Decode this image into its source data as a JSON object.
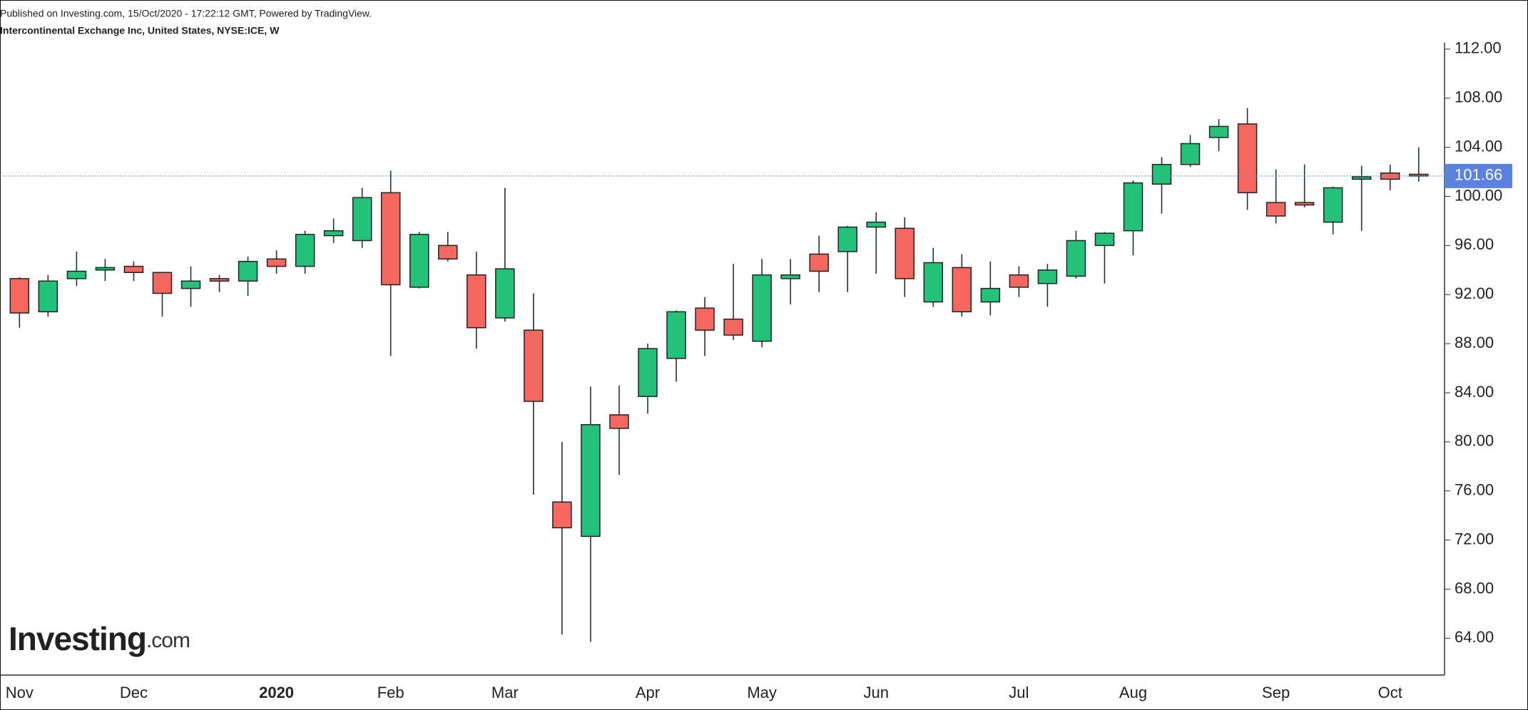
{
  "chart_data": {
    "type": "candlestick",
    "subtitle": "Published on Investing.com, 15/Oct/2020 - 17:22:12 GMT, Powered by TradingView.",
    "title": "Intercontinental Exchange Inc, United States, NYSE:ICE, W",
    "logo": {
      "name": "Investing",
      "suffix": ".com"
    },
    "categories": [
      "Nov",
      null,
      null,
      null,
      "Dec",
      null,
      null,
      null,
      null,
      "2020",
      null,
      null,
      null,
      "Feb",
      null,
      null,
      null,
      "Mar",
      null,
      null,
      null,
      null,
      "Apr",
      null,
      null,
      null,
      "May",
      null,
      null,
      null,
      "Jun",
      null,
      null,
      null,
      null,
      "Jul",
      null,
      null,
      null,
      "Aug",
      null,
      null,
      null,
      null,
      "Sep",
      null,
      null,
      null,
      "Oct",
      null
    ],
    "open": [
      93.3,
      90.6,
      93.3,
      94.0,
      94.3,
      93.8,
      92.5,
      93.3,
      93.1,
      94.9,
      94.3,
      96.8,
      96.4,
      100.3,
      92.6,
      96.0,
      93.6,
      90.1,
      89.1,
      75.1,
      72.3,
      82.2,
      83.7,
      86.8,
      90.9,
      90.0,
      88.2,
      93.3,
      95.3,
      95.5,
      97.5,
      97.4,
      91.4,
      94.2,
      91.4,
      93.6,
      92.9,
      93.5,
      96.0,
      97.2,
      101.0,
      102.6,
      104.8,
      105.9,
      99.5,
      99.5,
      97.9,
      101.4,
      101.9,
      101.8
    ],
    "high": [
      93.4,
      93.6,
      95.5,
      94.9,
      94.7,
      93.8,
      94.3,
      93.6,
      95.1,
      95.6,
      97.2,
      98.2,
      100.7,
      102.1,
      97.1,
      97.1,
      95.5,
      100.7,
      92.1,
      80.0,
      84.5,
      84.6,
      88.0,
      90.7,
      91.8,
      94.5,
      94.9,
      94.9,
      96.8,
      97.6,
      98.7,
      98.3,
      95.8,
      95.3,
      94.7,
      94.3,
      94.5,
      97.2,
      97.1,
      101.3,
      103.2,
      105.0,
      106.3,
      107.2,
      102.2,
      102.6,
      100.8,
      102.5,
      102.6,
      104.0
    ],
    "low": [
      89.3,
      90.2,
      92.7,
      93.1,
      93.1,
      90.2,
      91.0,
      92.2,
      91.9,
      93.7,
      93.7,
      96.2,
      95.8,
      87.0,
      92.5,
      94.7,
      87.6,
      89.8,
      75.7,
      64.3,
      63.7,
      77.3,
      82.3,
      84.9,
      87.0,
      88.3,
      87.7,
      91.2,
      92.2,
      92.2,
      93.7,
      91.8,
      91.0,
      90.2,
      90.3,
      91.8,
      91.0,
      93.3,
      92.9,
      95.2,
      98.6,
      102.4,
      103.7,
      98.9,
      97.8,
      99.1,
      96.9,
      97.2,
      100.5,
      101.2
    ],
    "close": [
      90.5,
      93.1,
      93.9,
      94.2,
      93.8,
      92.1,
      93.1,
      93.1,
      94.7,
      94.3,
      96.9,
      97.2,
      99.9,
      92.8,
      96.9,
      94.9,
      89.3,
      94.1,
      83.3,
      73.0,
      81.4,
      81.1,
      87.6,
      90.6,
      89.1,
      88.7,
      93.6,
      93.6,
      93.9,
      97.5,
      97.9,
      93.3,
      94.6,
      90.6,
      92.5,
      92.6,
      94.0,
      96.4,
      97.0,
      101.1,
      102.6,
      104.3,
      105.7,
      100.3,
      98.4,
      99.3,
      100.7,
      101.6,
      101.4,
      101.66
    ],
    "last_value": 101.66,
    "up_color": "#22c279",
    "down_color": "#f5675f",
    "last_color": "#5c82e0",
    "ylim": [
      61,
      116
    ],
    "yticks": [
      {
        "value": 64,
        "label": "64.00"
      },
      {
        "value": 68,
        "label": "68.00"
      },
      {
        "value": 72,
        "label": "72.00"
      },
      {
        "value": 76,
        "label": "76.00"
      },
      {
        "value": 80,
        "label": "80.00"
      },
      {
        "value": 84,
        "label": "84.00"
      },
      {
        "value": 88,
        "label": "88.00"
      },
      {
        "value": 92,
        "label": "92.00"
      },
      {
        "value": 96,
        "label": "96.00"
      },
      {
        "value": 100,
        "label": "100.00"
      },
      {
        "value": 104,
        "label": "104.00"
      },
      {
        "value": 108,
        "label": "108.00"
      },
      {
        "value": 112,
        "label": "112.00"
      }
    ],
    "grid": false
  }
}
